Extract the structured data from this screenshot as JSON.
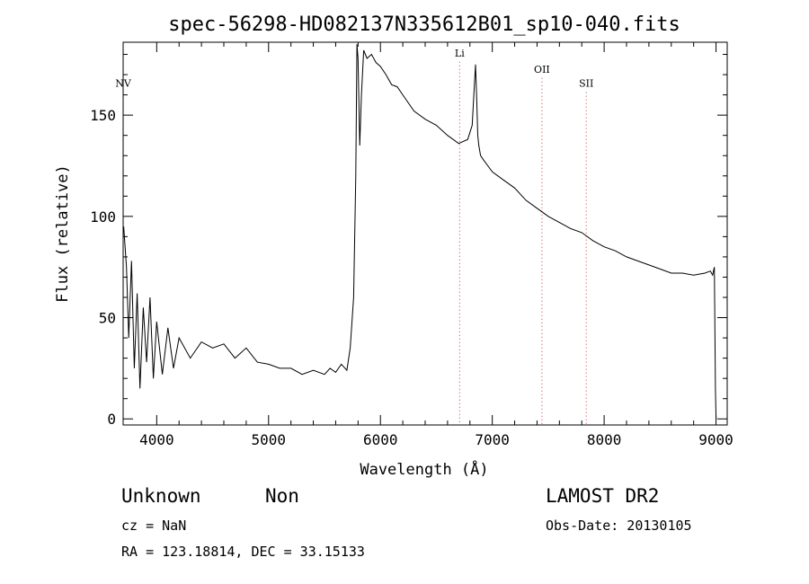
{
  "chart_data": {
    "type": "line",
    "title": "spec-56298-HD082137N335612B01_sp10-040.fits",
    "xlabel": "Wavelength (Å)",
    "ylabel": "Flux (relative)",
    "xlim": [
      3700,
      9100
    ],
    "ylim": [
      -3,
      186
    ],
    "xticks": [
      4000,
      5000,
      6000,
      7000,
      8000,
      9000
    ],
    "xtick_labels": [
      "4000",
      "5000",
      "6000",
      "7000",
      "8000",
      "9000"
    ],
    "yticks": [
      0,
      50,
      100,
      150
    ],
    "ytick_labels": [
      "0",
      "50",
      "100",
      "150"
    ],
    "grid": false,
    "line_color": "#000000",
    "marker_color": "#cc3333",
    "lines": [
      {
        "label": "NV",
        "x": 3700,
        "label_y": 164
      },
      {
        "label": "Li",
        "x": 6708,
        "label_y": 179
      },
      {
        "label": "OII",
        "x": 7444,
        "label_y": 171
      },
      {
        "label": "SII",
        "x": 7840,
        "label_y": 164
      }
    ],
    "series": [
      {
        "x": [
          3705,
          3730,
          3750,
          3775,
          3800,
          3825,
          3850,
          3880,
          3910,
          3940,
          3970,
          4000,
          4050,
          4100,
          4150,
          4200,
          4300,
          4400,
          4500,
          4600,
          4700,
          4800,
          4900,
          5000,
          5100,
          5200,
          5300,
          5400,
          5500,
          5550,
          5600,
          5650,
          5700,
          5730,
          5760,
          5780,
          5790,
          5800,
          5815,
          5830,
          5850,
          5880,
          5920,
          5960,
          6000,
          6050,
          6100,
          6150,
          6200,
          6300,
          6400,
          6500,
          6600,
          6700,
          6780,
          6820,
          6850,
          6860,
          6870,
          6880,
          6895,
          6920,
          6960,
          7000,
          7100,
          7200,
          7300,
          7400,
          7450,
          7500,
          7600,
          7700,
          7800,
          7850,
          7900,
          8000,
          8100,
          8200,
          8300,
          8400,
          8500,
          8600,
          8700,
          8800,
          8900,
          8950,
          8970,
          8985,
          8995,
          9000
        ],
        "y": [
          95,
          75,
          40,
          78,
          25,
          62,
          15,
          55,
          28,
          60,
          20,
          48,
          22,
          45,
          25,
          40,
          30,
          38,
          35,
          37,
          30,
          35,
          28,
          27,
          25,
          25,
          22,
          24,
          22,
          25,
          23,
          27,
          24,
          35,
          60,
          120,
          185,
          178,
          135,
          160,
          182,
          178,
          180,
          176,
          174,
          170,
          165,
          164,
          160,
          152,
          148,
          145,
          140,
          136,
          138,
          145,
          175,
          160,
          140,
          135,
          130,
          128,
          125,
          122,
          118,
          114,
          108,
          104,
          102,
          100,
          97,
          94,
          92,
          90,
          88,
          85,
          83,
          80,
          78,
          76,
          74,
          72,
          72,
          71,
          72,
          73,
          71,
          75,
          15,
          0
        ]
      }
    ]
  },
  "info": {
    "object_class": "Unknown",
    "subclass": "Non",
    "cz_label": "cz = NaN",
    "coords": "RA = 123.18814, DEC =  33.15133",
    "survey": "LAMOST DR2",
    "obs_date": "Obs-Date: 20130105"
  }
}
